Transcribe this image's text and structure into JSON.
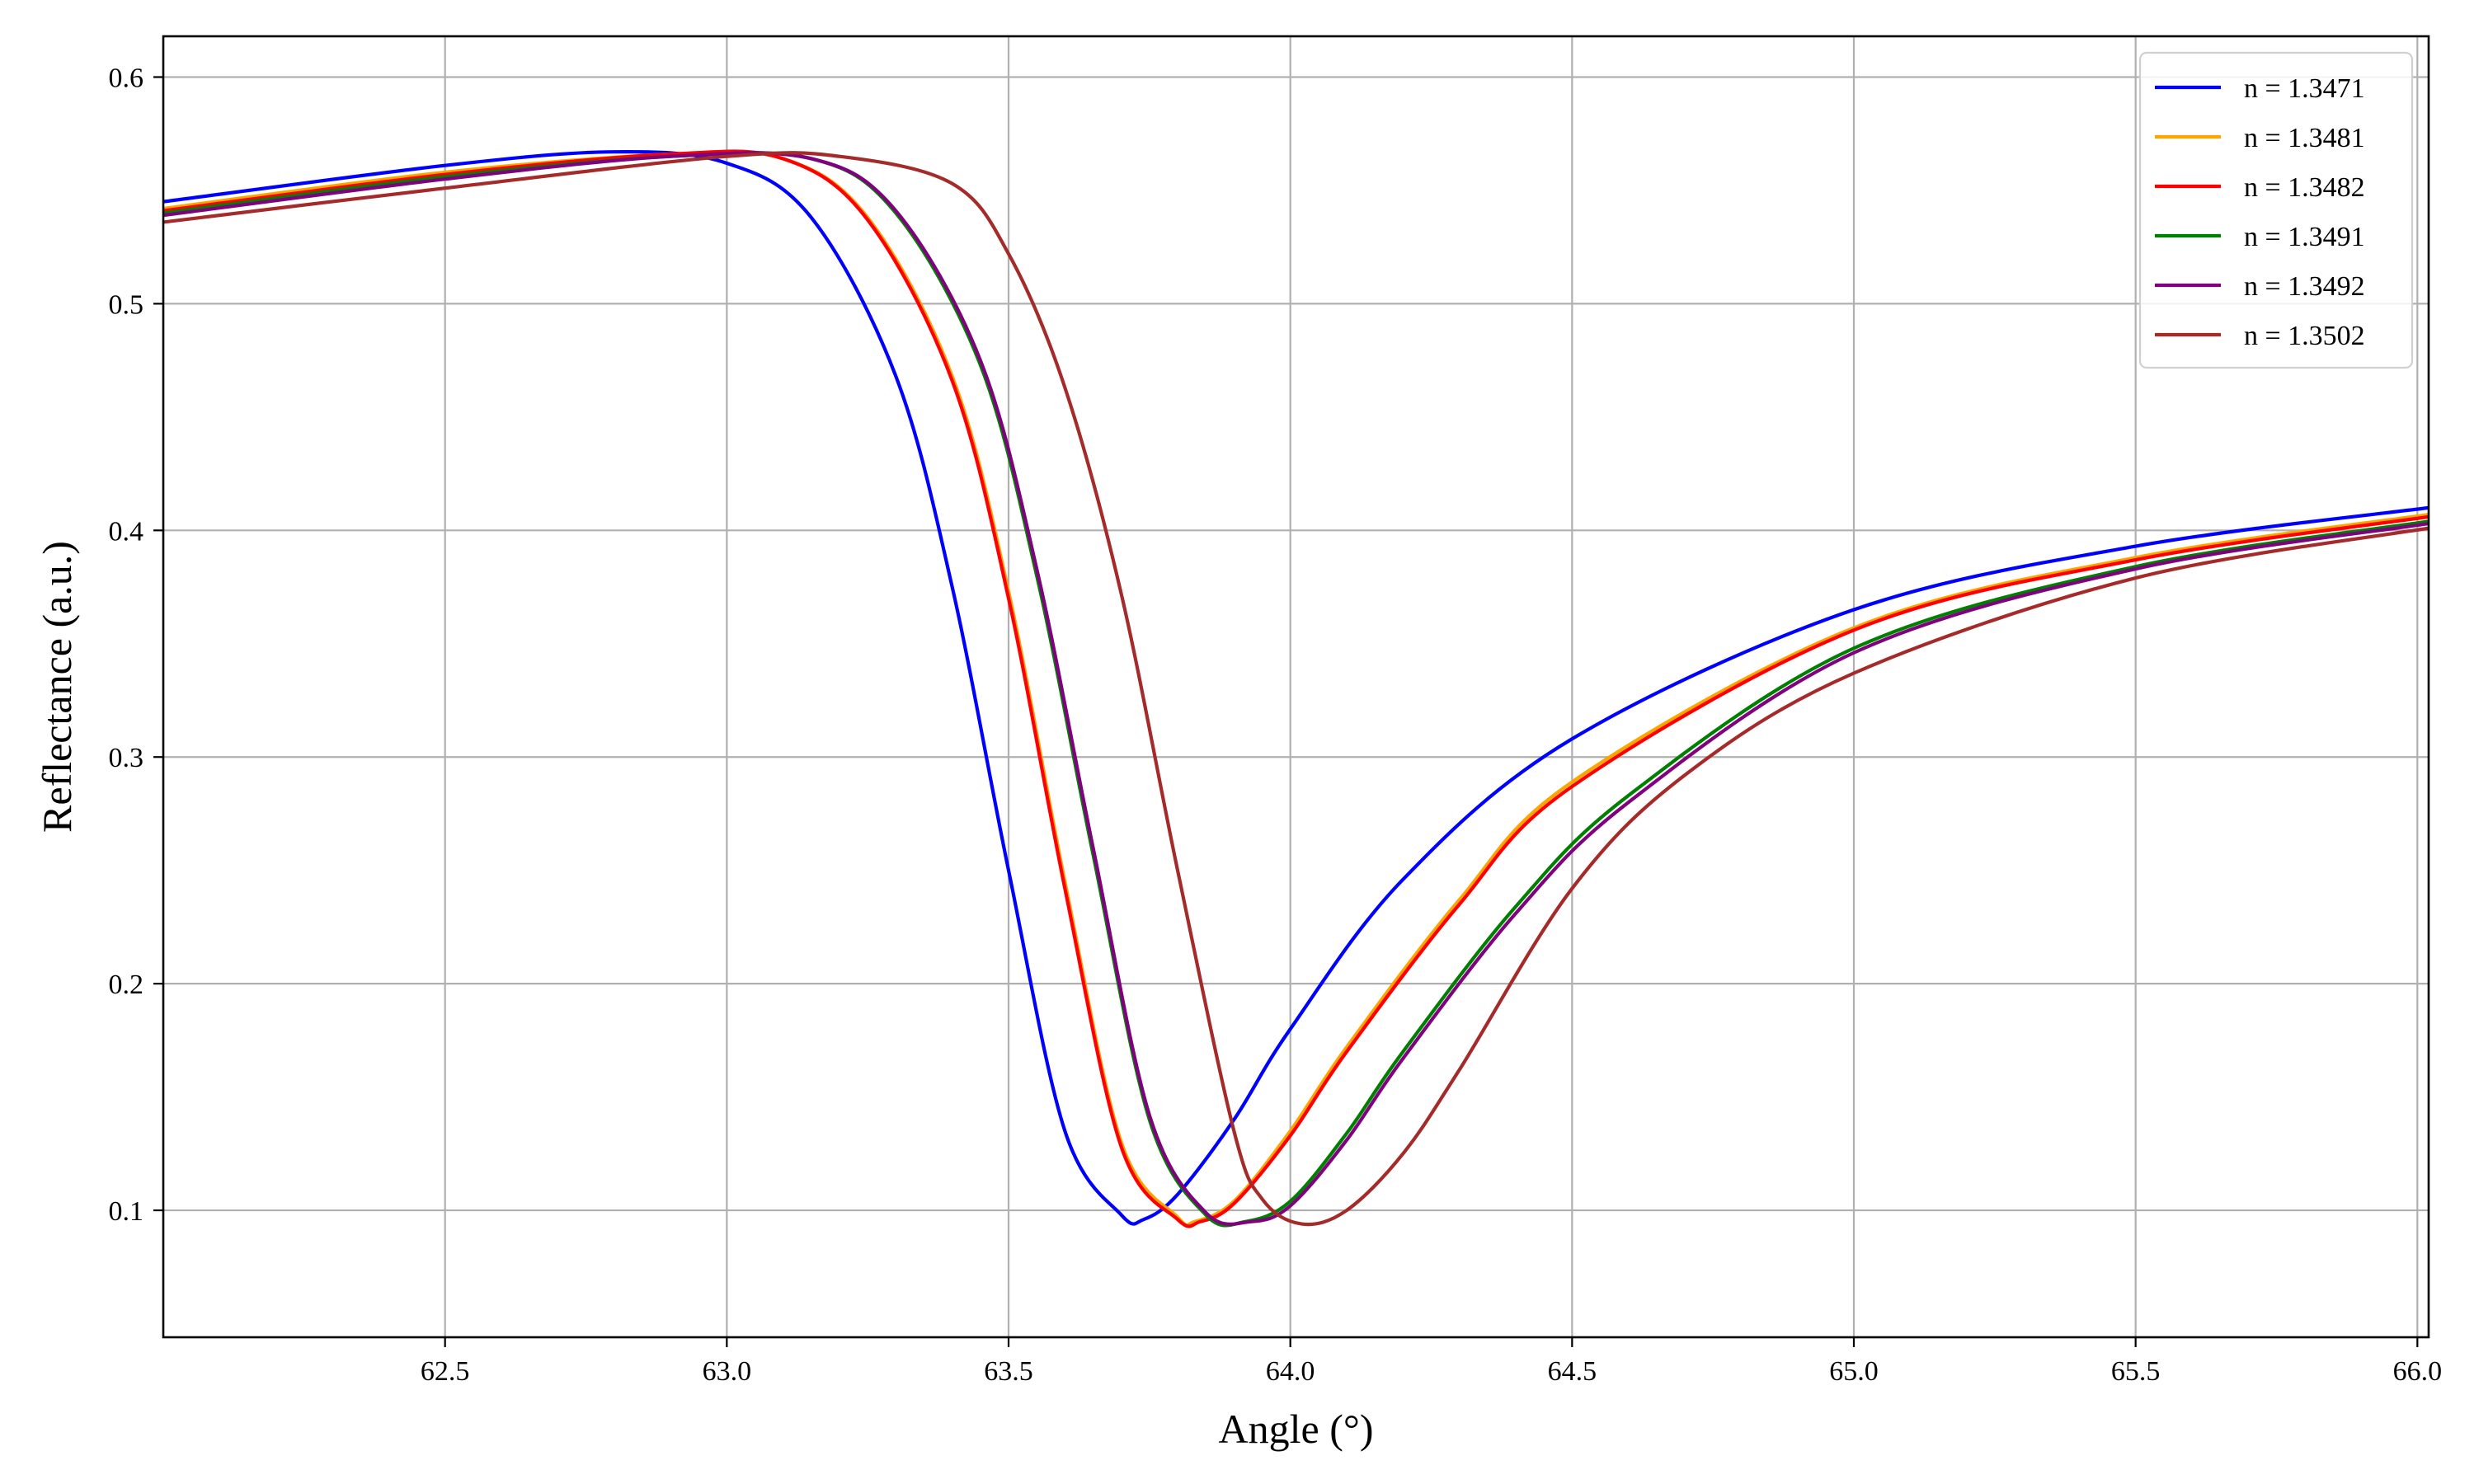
{
  "chart_data": {
    "type": "line",
    "title": "",
    "xlabel": "Angle (°)",
    "ylabel": "Reflectance (a.u.)",
    "xlim": [
      62.0,
      66.02
    ],
    "ylim": [
      0.044,
      0.618
    ],
    "xticks": [
      62.5,
      63.0,
      63.5,
      64.0,
      64.5,
      65.0,
      65.5,
      66.0
    ],
    "xtick_labels": [
      "62.5",
      "63.0",
      "63.5",
      "64.0",
      "64.5",
      "65.0",
      "65.5",
      "66.0"
    ],
    "yticks": [
      0.1,
      0.2,
      0.3,
      0.4,
      0.5,
      0.6
    ],
    "ytick_labels": [
      "0.1",
      "0.2",
      "0.3",
      "0.4",
      "0.5",
      "0.6"
    ],
    "grid": true,
    "legend_position": "top-right",
    "series": [
      {
        "name": "n = 1.3471",
        "color": "#0000ff",
        "x": [
          62.0,
          62.5,
          62.8,
          63.0,
          63.15,
          63.3,
          63.4,
          63.5,
          63.6,
          63.7,
          63.74,
          63.8,
          63.9,
          64.0,
          64.2,
          64.5,
          65.0,
          65.5,
          66.02
        ],
        "y": [
          0.545,
          0.561,
          0.567,
          0.562,
          0.538,
          0.468,
          0.375,
          0.25,
          0.135,
          0.098,
          0.096,
          0.107,
          0.14,
          0.18,
          0.246,
          0.308,
          0.365,
          0.393,
          0.41
        ]
      },
      {
        "name": "n = 1.3481",
        "color": "#ffa500",
        "x": [
          62.0,
          62.5,
          62.9,
          63.1,
          63.25,
          63.4,
          63.5,
          63.6,
          63.7,
          63.8,
          63.83,
          63.9,
          64.0,
          64.1,
          64.3,
          64.5,
          65.0,
          65.5,
          66.02
        ],
        "y": [
          0.542,
          0.558,
          0.566,
          0.564,
          0.538,
          0.468,
          0.373,
          0.245,
          0.13,
          0.097,
          0.095,
          0.104,
          0.135,
          0.172,
          0.237,
          0.289,
          0.357,
          0.388,
          0.407
        ]
      },
      {
        "name": "n = 1.3482",
        "color": "#ff0000",
        "x": [
          62.0,
          62.5,
          62.9,
          63.1,
          63.25,
          63.4,
          63.5,
          63.6,
          63.7,
          63.8,
          63.84,
          63.9,
          64.0,
          64.1,
          64.3,
          64.5,
          65.0,
          65.5,
          66.02
        ],
        "y": [
          0.541,
          0.557,
          0.566,
          0.564,
          0.537,
          0.466,
          0.37,
          0.242,
          0.128,
          0.096,
          0.095,
          0.103,
          0.133,
          0.17,
          0.235,
          0.287,
          0.356,
          0.387,
          0.406
        ]
      },
      {
        "name": "n = 1.3491",
        "color": "#008000",
        "x": [
          62.0,
          62.5,
          62.9,
          63.15,
          63.3,
          63.45,
          63.55,
          63.65,
          63.75,
          63.85,
          63.92,
          64.0,
          64.1,
          64.2,
          64.4,
          64.6,
          65.0,
          65.5,
          66.02
        ],
        "y": [
          0.54,
          0.556,
          0.565,
          0.564,
          0.54,
          0.473,
          0.38,
          0.257,
          0.14,
          0.098,
          0.095,
          0.104,
          0.134,
          0.17,
          0.234,
          0.283,
          0.348,
          0.384,
          0.404
        ]
      },
      {
        "name": "n = 1.3492",
        "color": "#800080",
        "x": [
          62.0,
          62.5,
          62.9,
          63.15,
          63.3,
          63.45,
          63.55,
          63.65,
          63.75,
          63.85,
          63.93,
          64.0,
          64.1,
          64.2,
          64.4,
          64.6,
          65.0,
          65.5,
          66.02
        ],
        "y": [
          0.539,
          0.555,
          0.565,
          0.564,
          0.541,
          0.475,
          0.383,
          0.26,
          0.142,
          0.099,
          0.095,
          0.102,
          0.131,
          0.167,
          0.231,
          0.28,
          0.346,
          0.383,
          0.403
        ]
      },
      {
        "name": "n = 1.3502",
        "color": "#a52a2a",
        "x": [
          62.0,
          62.5,
          63.0,
          63.2,
          63.4,
          63.5,
          63.6,
          63.7,
          63.8,
          63.9,
          63.95,
          64.02,
          64.1,
          64.2,
          64.3,
          64.5,
          64.7,
          65.0,
          65.5,
          66.02
        ],
        "y": [
          0.536,
          0.551,
          0.565,
          0.565,
          0.553,
          0.522,
          0.463,
          0.372,
          0.25,
          0.135,
          0.105,
          0.094,
          0.1,
          0.125,
          0.162,
          0.242,
          0.292,
          0.337,
          0.379,
          0.401
        ]
      }
    ]
  }
}
